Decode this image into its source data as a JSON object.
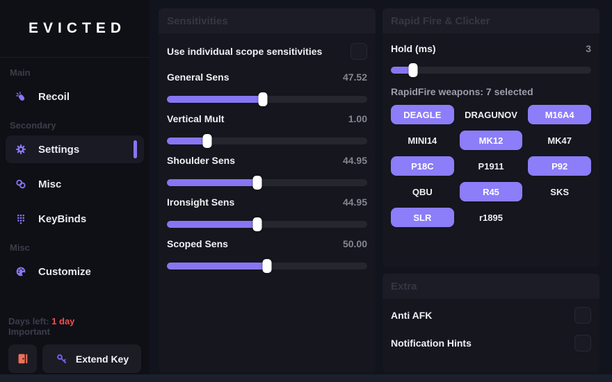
{
  "colors": {
    "accent": "#8776F2",
    "weapon_selected": "#8C7DF8",
    "danger_red": "#F14E4E",
    "door_orange": "#EE7058",
    "key_purple": "#7A5DF5"
  },
  "app": {
    "logo": "EVICTED"
  },
  "sidebar": {
    "sections": [
      {
        "label": "Main",
        "items": [
          {
            "label": "Recoil",
            "icon": "mouse-click-icon",
            "active": false
          }
        ]
      },
      {
        "label": "Secondary",
        "items": [
          {
            "label": "Settings",
            "icon": "gear-icon",
            "active": true
          },
          {
            "label": "Misc",
            "icon": "rings-icon",
            "active": false
          },
          {
            "label": "KeyBinds",
            "icon": "keypad-icon",
            "active": false
          }
        ]
      },
      {
        "label": "Misc",
        "items": [
          {
            "label": "Customize",
            "icon": "palette-icon",
            "active": false
          }
        ]
      }
    ],
    "footer": {
      "days_left_label": "Days left:",
      "days_left_value": "1 day",
      "important_label": "Important",
      "extend_key_label": "Extend Key"
    }
  },
  "sensitivities": {
    "title": "Sensitivities",
    "individual_scope": {
      "label": "Use individual scope sensitivities",
      "checked": false
    },
    "sliders": [
      {
        "label": "General Sens",
        "value": "47.52",
        "percent": 48
      },
      {
        "label": "Vertical Mult",
        "value": "1.00",
        "percent": 20
      },
      {
        "label": "Shoulder Sens",
        "value": "44.95",
        "percent": 45
      },
      {
        "label": "Ironsight Sens",
        "value": "44.95",
        "percent": 45
      },
      {
        "label": "Scoped Sens",
        "value": "50.00",
        "percent": 50
      }
    ]
  },
  "rapid_fire": {
    "title": "Rapid Fire & Clicker",
    "hold": {
      "label": "Hold (ms)",
      "value": "3",
      "percent": 11
    },
    "weapons_caption": "RapidFire weapons:",
    "weapons_count": "7 selected",
    "weapons": [
      {
        "name": "DEAGLE",
        "selected": true
      },
      {
        "name": "DRAGUNOV",
        "selected": false
      },
      {
        "name": "M16A4",
        "selected": true
      },
      {
        "name": "MINI14",
        "selected": false
      },
      {
        "name": "MK12",
        "selected": true
      },
      {
        "name": "MK47",
        "selected": false
      },
      {
        "name": "P18C",
        "selected": true
      },
      {
        "name": "P1911",
        "selected": false
      },
      {
        "name": "P92",
        "selected": true
      },
      {
        "name": "QBU",
        "selected": false
      },
      {
        "name": "R45",
        "selected": true
      },
      {
        "name": "SKS",
        "selected": false
      },
      {
        "name": "SLR",
        "selected": true
      },
      {
        "name": "r1895",
        "selected": false
      }
    ]
  },
  "extra": {
    "title": "Extra",
    "toggles": [
      {
        "label": "Anti AFK",
        "checked": false
      },
      {
        "label": "Notification Hints",
        "checked": false
      }
    ]
  }
}
